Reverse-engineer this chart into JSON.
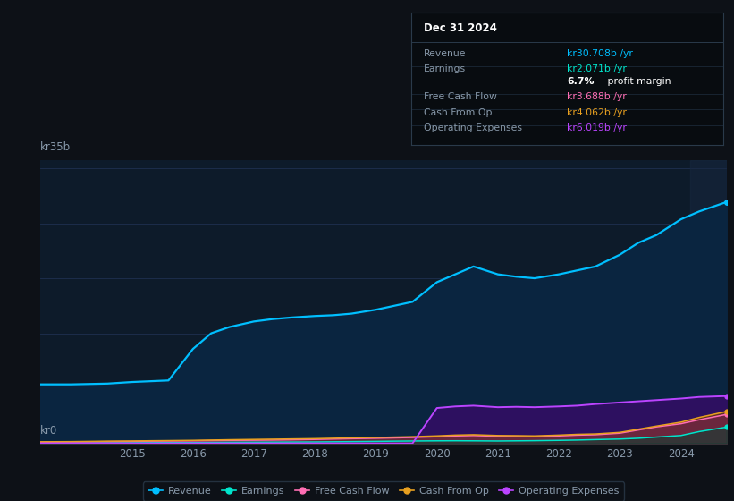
{
  "background_color": "#0d1117",
  "plot_bg_color": "#0d1b2a",
  "grid_color": "#1e3050",
  "text_color": "#8899aa",
  "ylabel_top": "kr35b",
  "ylabel_bottom": "kr0",
  "x_ticks": [
    2015,
    2016,
    2017,
    2018,
    2019,
    2020,
    2021,
    2022,
    2023,
    2024
  ],
  "years": [
    2013.5,
    2014.0,
    2014.3,
    2014.6,
    2015.0,
    2015.3,
    2015.6,
    2016.0,
    2016.3,
    2016.6,
    2017.0,
    2017.3,
    2017.6,
    2018.0,
    2018.3,
    2018.6,
    2019.0,
    2019.3,
    2019.6,
    2020.0,
    2020.3,
    2020.6,
    2021.0,
    2021.3,
    2021.6,
    2022.0,
    2022.3,
    2022.6,
    2023.0,
    2023.3,
    2023.6,
    2024.0,
    2024.3,
    2024.75
  ],
  "revenue": [
    7.5,
    7.5,
    7.55,
    7.6,
    7.8,
    7.9,
    8.0,
    12.0,
    14.0,
    14.8,
    15.5,
    15.8,
    16.0,
    16.2,
    16.3,
    16.5,
    17.0,
    17.5,
    18.0,
    20.5,
    21.5,
    22.5,
    21.5,
    21.2,
    21.0,
    21.5,
    22.0,
    22.5,
    24.0,
    25.5,
    26.5,
    28.5,
    29.5,
    30.7
  ],
  "earnings": [
    0.05,
    0.05,
    0.06,
    0.07,
    0.08,
    0.09,
    0.1,
    0.1,
    0.12,
    0.14,
    0.15,
    0.16,
    0.17,
    0.18,
    0.2,
    0.22,
    0.25,
    0.28,
    0.3,
    0.32,
    0.33,
    0.32,
    0.3,
    0.32,
    0.34,
    0.38,
    0.42,
    0.48,
    0.55,
    0.65,
    0.8,
    1.0,
    1.5,
    2.071
  ],
  "free_cash_flow": [
    0.15,
    0.18,
    0.2,
    0.22,
    0.25,
    0.28,
    0.3,
    0.32,
    0.35,
    0.38,
    0.4,
    0.42,
    0.45,
    0.5,
    0.55,
    0.6,
    0.65,
    0.7,
    0.75,
    0.85,
    0.95,
    1.0,
    0.9,
    0.88,
    0.85,
    0.95,
    1.05,
    1.1,
    1.3,
    1.7,
    2.1,
    2.5,
    3.0,
    3.688
  ],
  "cash_from_op": [
    0.2,
    0.22,
    0.25,
    0.28,
    0.3,
    0.33,
    0.35,
    0.38,
    0.42,
    0.46,
    0.5,
    0.53,
    0.56,
    0.6,
    0.65,
    0.7,
    0.75,
    0.8,
    0.85,
    0.95,
    1.05,
    1.1,
    1.0,
    0.98,
    0.95,
    1.05,
    1.15,
    1.2,
    1.4,
    1.8,
    2.2,
    2.7,
    3.3,
    4.062
  ],
  "operating_expenses": [
    0.0,
    0.0,
    0.0,
    0.0,
    0.0,
    0.0,
    0.0,
    0.0,
    0.0,
    0.0,
    0.0,
    0.0,
    0.0,
    0.0,
    0.0,
    0.0,
    0.0,
    0.0,
    0.0,
    4.5,
    4.7,
    4.8,
    4.6,
    4.65,
    4.6,
    4.7,
    4.8,
    5.0,
    5.2,
    5.35,
    5.5,
    5.7,
    5.9,
    6.019
  ],
  "revenue_color": "#00bfff",
  "earnings_color": "#00e5cc",
  "fcf_color": "#ff6eb4",
  "cashop_color": "#e8a020",
  "opex_color": "#bb44ff",
  "revenue_fill": "#0a2540",
  "opex_fill": "#2d1060",
  "tooltip_title": "Dec 31 2024",
  "tooltip_bg": "#080c10",
  "tooltip_border": "#2a3a4a",
  "tooltip_rows": [
    {
      "label": "Revenue",
      "value": "kr30.708b /yr",
      "value_color": "#00bfff"
    },
    {
      "label": "Earnings",
      "value": "kr2.071b /yr",
      "value_color": "#00e5cc"
    },
    {
      "label": "",
      "value_bold": "6.7%",
      "value_rest": " profit margin",
      "value_color": "#ffffff"
    },
    {
      "label": "Free Cash Flow",
      "value": "kr3.688b /yr",
      "value_color": "#ff6eb4"
    },
    {
      "label": "Cash From Op",
      "value": "kr4.062b /yr",
      "value_color": "#e8a020"
    },
    {
      "label": "Operating Expenses",
      "value": "kr6.019b /yr",
      "value_color": "#bb44ff"
    }
  ]
}
